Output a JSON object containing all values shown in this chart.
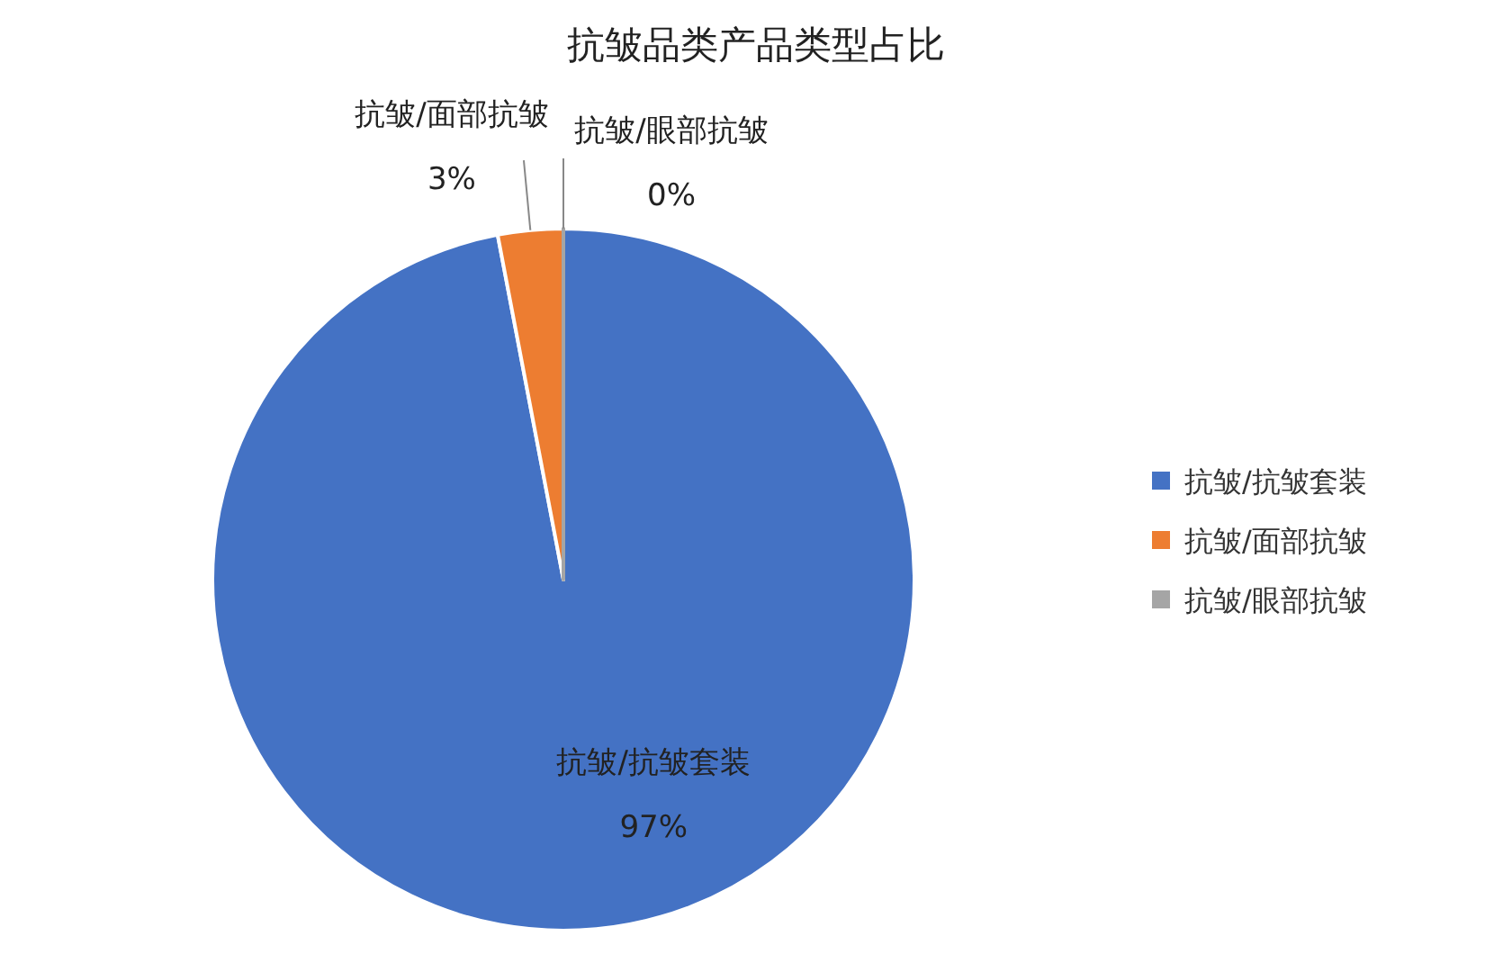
{
  "chart_data": {
    "type": "pie",
    "title": "抗皱品类产品类型占比",
    "categories": [
      "抗皱/抗皱套装",
      "抗皱/面部抗皱",
      "抗皱/眼部抗皱"
    ],
    "values": [
      97,
      3,
      0
    ],
    "colors": [
      "#4472c4",
      "#ed7d31",
      "#a5a5a5"
    ],
    "value_labels": [
      "97%",
      "3%",
      "0%"
    ],
    "legend": "right"
  }
}
